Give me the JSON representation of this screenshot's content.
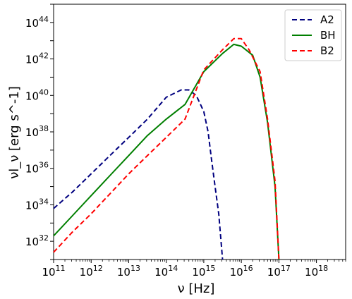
{
  "chart_data": {
    "type": "line",
    "xscale": "log",
    "yscale": "log",
    "xlim": [
      100000000000.0,
      6e+18
    ],
    "ylim": [
      1e+31,
      1e+45
    ],
    "xlabel": "ν [Hz]",
    "ylabel": "νl_ν [erg s^-1]",
    "x_ticks": [
      {
        "exp": "11"
      },
      {
        "exp": "12"
      },
      {
        "exp": "13"
      },
      {
        "exp": "14"
      },
      {
        "exp": "15"
      },
      {
        "exp": "16"
      },
      {
        "exp": "17"
      },
      {
        "exp": "18"
      }
    ],
    "y_ticks": [
      {
        "exp": "32"
      },
      {
        "exp": "34"
      },
      {
        "exp": "36"
      },
      {
        "exp": "38"
      },
      {
        "exp": "40"
      },
      {
        "exp": "42"
      },
      {
        "exp": "44"
      }
    ],
    "legend": {
      "position": "upper right"
    },
    "grid": false,
    "series": [
      {
        "name": "A2",
        "color": "#00007f",
        "style": "dashed",
        "points": [
          [
            100000000000.0,
            6.3e+33
          ],
          [
            316000000000.0,
            5e+34
          ],
          [
            1000000000000.0,
            5e+35
          ],
          [
            3160000000000.0,
            5e+36
          ],
          [
            10000000000000.0,
            5e+37
          ],
          [
            31600000000000.0,
            5e+38
          ],
          [
            100000000000000.0,
            7.9e+39
          ],
          [
            250000000000000.0,
            2e+40
          ],
          [
            400000000000000.0,
            2e+40
          ],
          [
            630000000000000.0,
            1e+40
          ],
          [
            1000000000000000.0,
            1.3e+39
          ],
          [
            1300000000000000.0,
            1e+38
          ],
          [
            1600000000000000.0,
            3.2e+36
          ],
          [
            2000000000000000.0,
            1e+35
          ],
          [
            2500000000000000.0,
            3.2e+33
          ],
          [
            3160000000000000.0,
            1e+31
          ]
        ]
      },
      {
        "name": "BH",
        "color": "#007f00",
        "style": "solid",
        "points": [
          [
            100000000000.0,
            2e+32
          ],
          [
            316000000000.0,
            2.5e+33
          ],
          [
            1000000000000.0,
            3.2e+34
          ],
          [
            3160000000000.0,
            4e+35
          ],
          [
            10000000000000.0,
            5e+36
          ],
          [
            31600000000000.0,
            6.3e+37
          ],
          [
            100000000000000.0,
            5e+38
          ],
          [
            316000000000000.0,
            3.2e+39
          ],
          [
            1000000000000000.0,
            2e+41
          ],
          [
            3160000000000000.0,
            2e+42
          ],
          [
            6300000000000000.0,
            6.3e+42
          ],
          [
            1e+16,
            5e+42
          ],
          [
            2e+16,
            1.6e+42
          ],
          [
            3.16e+16,
            1e+41
          ],
          [
            5e+16,
            3.2e+38
          ],
          [
            7.9e+16,
            1e+35
          ],
          [
            1e+17,
            1e+31
          ]
        ]
      },
      {
        "name": "B2",
        "color": "#ff0000",
        "style": "dashed",
        "points": [
          [
            100000000000.0,
            2.5e+31
          ],
          [
            316000000000.0,
            3.2e+32
          ],
          [
            1000000000000.0,
            3.2e+33
          ],
          [
            3160000000000.0,
            4e+34
          ],
          [
            10000000000000.0,
            5e+35
          ],
          [
            31600000000000.0,
            5e+36
          ],
          [
            100000000000000.0,
            5e+37
          ],
          [
            316000000000000.0,
            5e+38
          ],
          [
            1000000000000000.0,
            2.5e+41
          ],
          [
            3160000000000000.0,
            3.2e+42
          ],
          [
            6300000000000000.0,
            1.3e+43
          ],
          [
            1e+16,
            1.3e+43
          ],
          [
            1.6e+16,
            3.2e+42
          ],
          [
            3.16e+16,
            2e+41
          ],
          [
            5e+16,
            5e+38
          ],
          [
            7.9e+16,
            2e+35
          ],
          [
            1e+17,
            1e+31
          ]
        ]
      }
    ]
  }
}
